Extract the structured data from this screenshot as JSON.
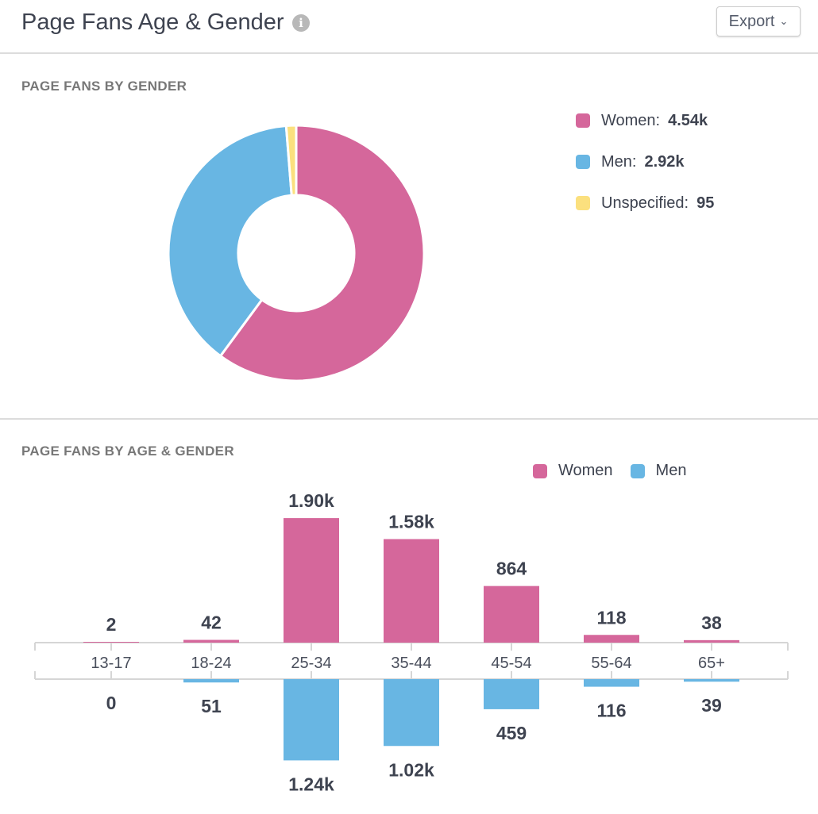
{
  "header": {
    "title": "Page Fans Age & Gender",
    "info_icon": "info-circle-icon",
    "export_label": "Export",
    "export_icon": "chevron-down-icon"
  },
  "colors": {
    "women": "#d5679b",
    "men": "#68b6e3",
    "unspecified": "#fbe07e"
  },
  "chart_data": [
    {
      "type": "pie",
      "variant": "donut",
      "title": "PAGE FANS BY GENDER",
      "legend_position": "right",
      "slices": [
        {
          "name": "Women",
          "value": 4540,
          "label": "4.54k"
        },
        {
          "name": "Men",
          "value": 2920,
          "label": "2.92k"
        },
        {
          "name": "Unspecified",
          "value": 95,
          "label": "95"
        }
      ]
    },
    {
      "type": "bar",
      "variant": "diverging",
      "title": "PAGE FANS BY AGE & GENDER",
      "legend_position": "top-right",
      "categories": [
        "13-17",
        "18-24",
        "25-34",
        "35-44",
        "45-54",
        "55-64",
        "65+"
      ],
      "series": [
        {
          "name": "Women",
          "values": [
            2,
            42,
            1900,
            1580,
            864,
            118,
            38
          ],
          "labels": [
            "2",
            "42",
            "1.90k",
            "1.58k",
            "864",
            "118",
            "38"
          ]
        },
        {
          "name": "Men",
          "values": [
            0,
            51,
            1240,
            1020,
            459,
            116,
            39
          ],
          "labels": [
            "0",
            "51",
            "1.24k",
            "1.02k",
            "459",
            "116",
            "39"
          ]
        }
      ]
    }
  ]
}
